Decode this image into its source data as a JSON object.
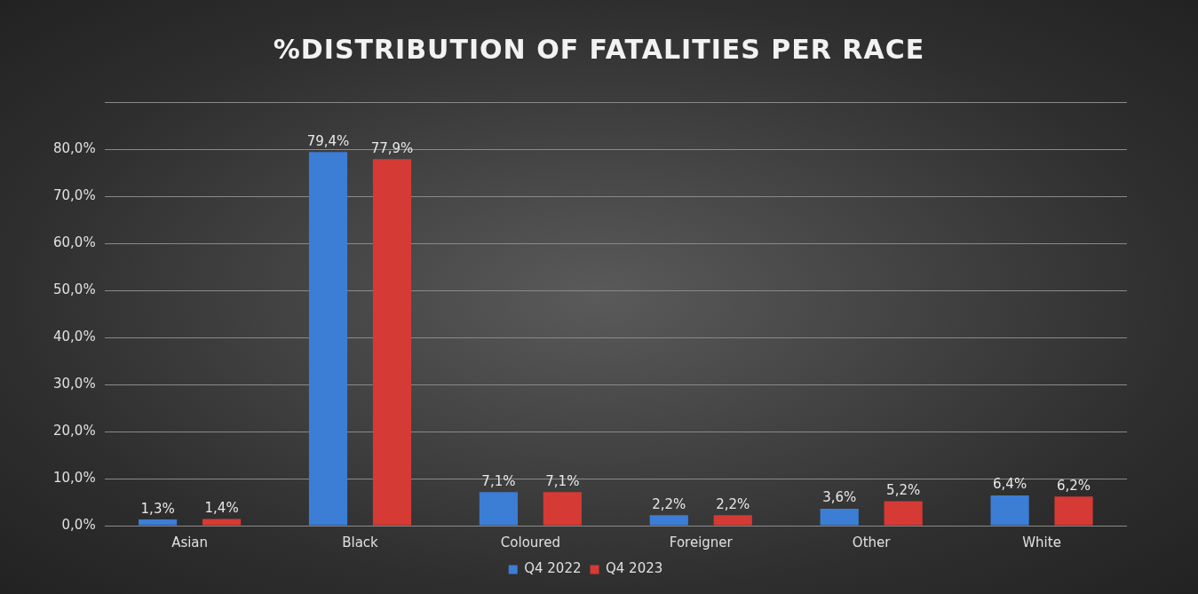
{
  "chart_data": {
    "type": "bar",
    "title": "%DISTRIBUTION OF FATALITIES PER RACE",
    "categories": [
      "Asian",
      "Black",
      "Coloured",
      "Foreigner",
      "Other",
      "White"
    ],
    "series": [
      {
        "name": "Q4 2022",
        "color": "#3c7dd6",
        "values": [
          1.3,
          79.4,
          7.1,
          2.2,
          3.6,
          6.4
        ],
        "value_labels": [
          "1,3%",
          "79,4%",
          "7,1%",
          "2,2%",
          "3,6%",
          "6,4%"
        ]
      },
      {
        "name": "Q4 2023",
        "color": "#d63a34",
        "values": [
          1.4,
          77.9,
          7.1,
          2.2,
          5.2,
          6.2
        ],
        "value_labels": [
          "1,4%",
          "77,9%",
          "7,1%",
          "2,2%",
          "5,2%",
          "6,2%"
        ]
      }
    ],
    "ylim": [
      0,
      90
    ],
    "yticks": [
      {
        "value": 0,
        "label": "0,0%"
      },
      {
        "value": 10,
        "label": "10,0%"
      },
      {
        "value": 20,
        "label": "20,0%"
      },
      {
        "value": 30,
        "label": "30,0%"
      },
      {
        "value": 40,
        "label": "40,0%"
      },
      {
        "value": 50,
        "label": "50,0%"
      },
      {
        "value": 60,
        "label": "60,0%"
      },
      {
        "value": 70,
        "label": "70,0%"
      },
      {
        "value": 80,
        "label": "80,0%"
      },
      {
        "value": 90,
        "label": null
      }
    ],
    "grid": "y",
    "legend": "bottom"
  }
}
